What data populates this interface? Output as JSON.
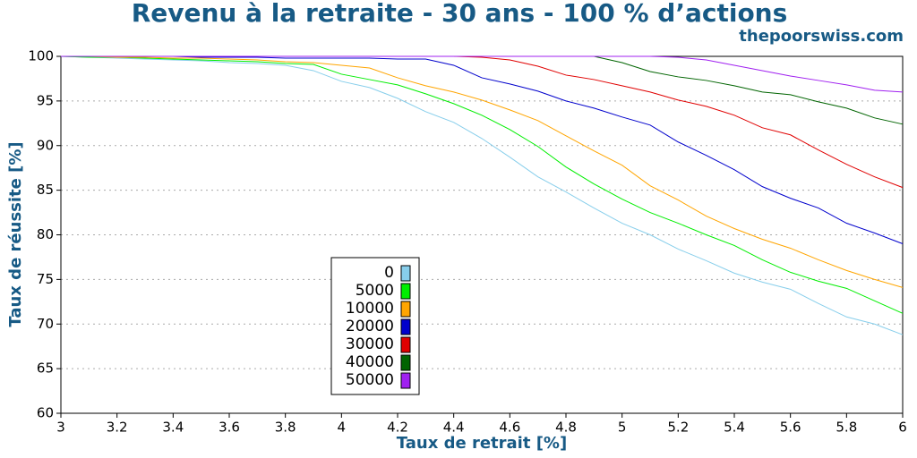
{
  "chart_data": {
    "type": "line",
    "title": "Revenu à la retraite - 30 ans - 100 % d’actions",
    "subtitle": "thepoorswiss.com",
    "x_label": "Taux de retrait [%]",
    "y_label": "Taux de réussite [%]",
    "x": [
      3.0,
      3.1,
      3.2,
      3.3,
      3.4,
      3.5,
      3.6,
      3.7,
      3.8,
      3.9,
      4.0,
      4.1,
      4.2,
      4.3,
      4.4,
      4.5,
      4.6,
      4.7,
      4.8,
      4.9,
      5.0,
      5.1,
      5.2,
      5.3,
      5.4,
      5.5,
      5.6,
      5.7,
      5.8,
      5.9,
      6.0
    ],
    "xlim": [
      3,
      6
    ],
    "xticks": [
      3,
      3.2,
      3.4,
      3.6,
      3.8,
      4,
      4.2,
      4.4,
      4.6,
      4.8,
      5,
      5.2,
      5.4,
      5.6,
      5.8,
      6
    ],
    "ylim": [
      60,
      100
    ],
    "yticks": [
      60,
      65,
      70,
      75,
      80,
      85,
      90,
      95,
      100
    ],
    "grid": true,
    "legend": "lower-left",
    "series": [
      {
        "name": "0",
        "color": "#87ceeb",
        "values": [
          100,
          99.9,
          99.8,
          99.7,
          99.6,
          99.5,
          99.3,
          99.2,
          99.0,
          98.4,
          97.2,
          96.5,
          95.3,
          93.8,
          92.6,
          90.8,
          88.7,
          86.5,
          84.8,
          83.0,
          81.3,
          80.0,
          78.4,
          77.1,
          75.7,
          74.7,
          73.9,
          72.3,
          70.8,
          70.0,
          68.8
        ]
      },
      {
        "name": "5000",
        "color": "#00ee00",
        "values": [
          100,
          99.9,
          99.9,
          99.8,
          99.7,
          99.6,
          99.5,
          99.4,
          99.2,
          99.1,
          98.0,
          97.4,
          96.8,
          95.8,
          94.7,
          93.4,
          91.8,
          89.9,
          87.6,
          85.7,
          84.0,
          82.5,
          81.3,
          80.0,
          78.8,
          77.2,
          75.8,
          74.8,
          74.0,
          72.6,
          71.2
        ]
      },
      {
        "name": "10000",
        "color": "#ffa500",
        "values": [
          100,
          100,
          99.9,
          99.9,
          99.8,
          99.8,
          99.7,
          99.6,
          99.4,
          99.3,
          99.0,
          98.7,
          97.6,
          96.7,
          96.0,
          95.1,
          94.0,
          92.8,
          91.1,
          89.4,
          87.8,
          85.5,
          83.9,
          82.1,
          80.7,
          79.5,
          78.5,
          77.2,
          76.0,
          75.0,
          74.1
        ]
      },
      {
        "name": "20000",
        "color": "#0000cc",
        "values": [
          100,
          100,
          100,
          100,
          100,
          99.9,
          99.9,
          99.9,
          99.8,
          99.8,
          99.8,
          99.8,
          99.7,
          99.7,
          99.0,
          97.6,
          96.9,
          96.1,
          95.0,
          94.2,
          93.2,
          92.3,
          90.4,
          88.9,
          87.3,
          85.4,
          84.1,
          83.0,
          81.3,
          80.2,
          79.0
        ]
      },
      {
        "name": "30000",
        "color": "#e00000",
        "values": [
          100,
          100,
          100,
          100,
          100,
          100,
          100,
          100,
          100,
          100,
          100,
          100,
          100,
          100,
          100,
          99.9,
          99.6,
          98.9,
          97.9,
          97.4,
          96.7,
          96.0,
          95.1,
          94.4,
          93.4,
          92.0,
          91.2,
          89.5,
          87.9,
          86.5,
          85.3
        ]
      },
      {
        "name": "40000",
        "color": "#006400",
        "values": [
          100,
          100,
          100,
          100,
          100,
          100,
          100,
          100,
          100,
          100,
          100,
          100,
          100,
          100,
          100,
          100,
          100,
          100,
          100,
          100,
          99.3,
          98.3,
          97.7,
          97.3,
          96.7,
          96.0,
          95.7,
          94.9,
          94.2,
          93.1,
          92.4
        ]
      },
      {
        "name": "50000",
        "color": "#a020f0",
        "values": [
          100,
          100,
          100,
          100,
          100,
          100,
          100,
          100,
          100,
          100,
          100,
          100,
          100,
          100,
          100,
          100,
          100,
          100,
          100,
          100,
          100,
          100,
          99.9,
          99.6,
          99.0,
          98.4,
          97.8,
          97.3,
          96.8,
          96.2,
          96.0
        ]
      }
    ]
  }
}
